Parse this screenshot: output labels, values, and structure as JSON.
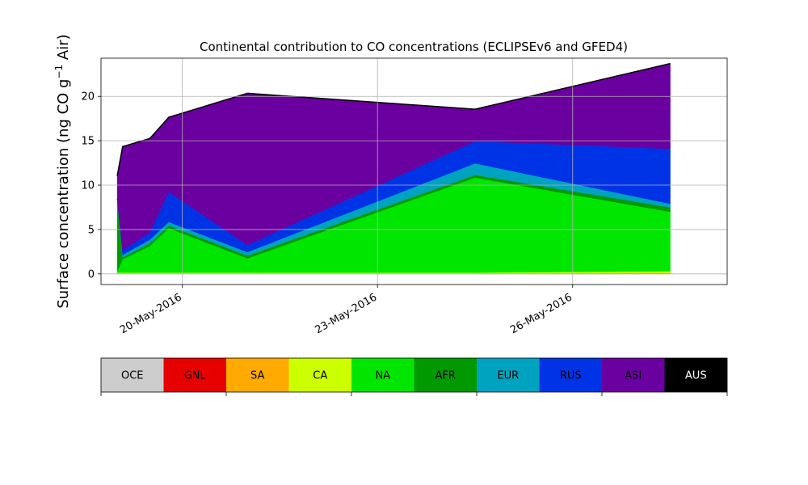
{
  "chart_data": {
    "type": "area",
    "stacked": true,
    "title": "Continental contribution to CO concentrations (ECLIPSEv6 and GFED4)",
    "ylabel": "Surface concentration (ng CO g",
    "ylabel_sup": "−1",
    "ylabel_tail": " Air)",
    "ylim": [
      -1.2,
      24.3
    ],
    "yticks": [
      0,
      5,
      10,
      15,
      20
    ],
    "xlim": [
      "2016-05-18T18:00",
      "2016-05-28T09:00"
    ],
    "xticks": [
      {
        "date": "2016-05-20T00:00",
        "label": "20-May-2016"
      },
      {
        "date": "2016-05-23T00:00",
        "label": "23-May-2016"
      },
      {
        "date": "2016-05-26T00:00",
        "label": "26-May-2016"
      }
    ],
    "grid": true,
    "x": [
      "2016-05-19T00:00",
      "2016-05-19T02:00",
      "2016-05-19T12:00",
      "2016-05-19T19:00",
      "2016-05-21T00:00",
      "2016-05-24T12:00",
      "2016-05-27T12:00"
    ],
    "series": [
      {
        "name": "OCE",
        "color": "#cccccc",
        "values": [
          0,
          0,
          0,
          0,
          0,
          0,
          0
        ]
      },
      {
        "name": "GNL",
        "color": "#e60000",
        "values": [
          0,
          0,
          0,
          0,
          0,
          0,
          0
        ]
      },
      {
        "name": "SA",
        "color": "#ffaa00",
        "values": [
          0.05,
          0.05,
          0.05,
          0.05,
          0.05,
          0.05,
          0.1
        ]
      },
      {
        "name": "CA",
        "color": "#ccff00",
        "values": [
          0.1,
          0.1,
          0.1,
          0.1,
          0.1,
          0.1,
          0.2
        ]
      },
      {
        "name": "NA",
        "color": "#00e600",
        "values": [
          0.2,
          1.5,
          3.0,
          5.0,
          1.6,
          10.7,
          6.7
        ]
      },
      {
        "name": "AFR",
        "color": "#009900",
        "values": [
          8.1,
          0.2,
          0.3,
          0.3,
          0.3,
          0.3,
          0.5
        ]
      },
      {
        "name": "EUR",
        "color": "#00a3bf",
        "values": [
          0,
          0.3,
          0.4,
          0.4,
          0.4,
          1.3,
          0.4
        ]
      },
      {
        "name": "RUS",
        "color": "#0033e6",
        "values": [
          0,
          0.5,
          0.8,
          3.4,
          0.8,
          2.5,
          6.2
        ]
      },
      {
        "name": "ASI",
        "color": "#6a00a0",
        "values": [
          2.6,
          11.7,
          10.6,
          8.4,
          17.1,
          3.6,
          9.6
        ]
      },
      {
        "name": "AUS",
        "color": "#000000",
        "values": [
          0,
          0,
          0,
          0,
          0,
          0,
          0
        ]
      }
    ],
    "legend": {
      "placement": "colorbar-below",
      "entries": [
        {
          "name": "OCE",
          "color": "#cccccc",
          "text_color": "#000000"
        },
        {
          "name": "GNL",
          "color": "#e60000",
          "text_color": "#000000"
        },
        {
          "name": "SA",
          "color": "#ffaa00",
          "text_color": "#000000"
        },
        {
          "name": "CA",
          "color": "#ccff00",
          "text_color": "#000000"
        },
        {
          "name": "NA",
          "color": "#00e600",
          "text_color": "#000000"
        },
        {
          "name": "AFR",
          "color": "#009900",
          "text_color": "#000000"
        },
        {
          "name": "EUR",
          "color": "#00a3bf",
          "text_color": "#000000"
        },
        {
          "name": "RUS",
          "color": "#0033e6",
          "text_color": "#000000"
        },
        {
          "name": "ASI",
          "color": "#6a00a0",
          "text_color": "#000000"
        },
        {
          "name": "AUS",
          "color": "#000000",
          "text_color": "#ffffff"
        }
      ]
    }
  }
}
